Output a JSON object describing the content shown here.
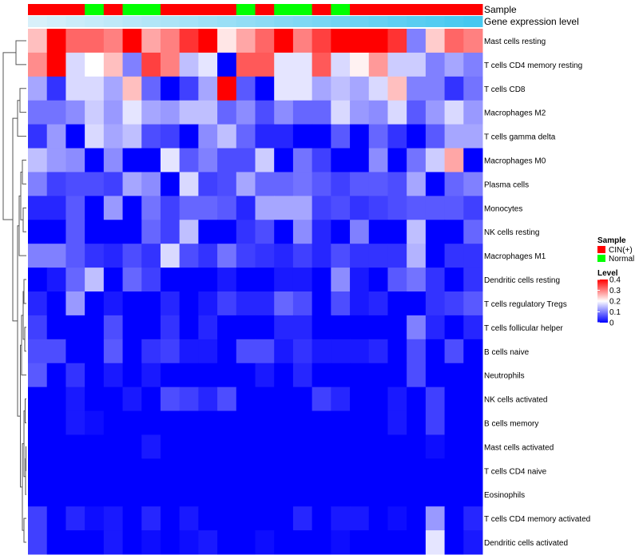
{
  "chart_data": {
    "type": "heatmap",
    "title": "",
    "annotation_labels": {
      "sample": "Sample",
      "gene_expression": "Gene expression level"
    },
    "rows": [
      "Mast cells resting",
      "T cells CD4 memory resting",
      "T cells CD8",
      "Macrophages M2",
      "T cells gamma delta",
      "Macrophages M0",
      "Plasma cells",
      "Monocytes",
      "NK cells resting",
      "Macrophages M1",
      "Dendritic cells resting",
      "T cells regulatory  Tregs",
      "T cells follicular helper",
      "B cells naive",
      "Neutrophils",
      "NK cells activated",
      "B cells memory",
      "Mast cells activated",
      "T cells CD4 naive",
      "Eosinophils",
      "T cells CD4 memory activated",
      "Dendritic cells activated"
    ],
    "sample_groups": [
      "CIN(+)",
      "CIN(+)",
      "CIN(+)",
      "Normal",
      "CIN(+)",
      "Normal",
      "Normal",
      "CIN(+)",
      "CIN(+)",
      "CIN(+)",
      "CIN(+)",
      "Normal",
      "CIN(+)",
      "Normal",
      "Normal",
      "CIN(+)",
      "Normal",
      "CIN(+)",
      "CIN(+)",
      "CIN(+)",
      "CIN(+)",
      "CIN(+)",
      "CIN(+)",
      "CIN(+)"
    ],
    "gene_expression_level": [
      0.0,
      0.04,
      0.09,
      0.13,
      0.17,
      0.22,
      0.26,
      0.3,
      0.35,
      0.39,
      0.43,
      0.48,
      0.52,
      0.57,
      0.61,
      0.65,
      0.7,
      0.74,
      0.78,
      0.83,
      0.87,
      0.91,
      0.96,
      1.0
    ],
    "values": [
      [
        0.25,
        0.4,
        0.32,
        0.32,
        0.3,
        0.4,
        0.27,
        0.3,
        0.36,
        0.4,
        0.22,
        0.27,
        0.32,
        0.4,
        0.3,
        0.35,
        0.4,
        0.4,
        0.4,
        0.36,
        0.1,
        0.24,
        0.32,
        0.3
      ],
      [
        0.29,
        0.4,
        0.17,
        0.2,
        0.25,
        0.1,
        0.35,
        0.3,
        0.15,
        0.18,
        0.0,
        0.33,
        0.33,
        0.18,
        0.18,
        0.33,
        0.17,
        0.21,
        0.28,
        0.16,
        0.16,
        0.1,
        0.13,
        0.1
      ],
      [
        0.13,
        0.04,
        0.17,
        0.17,
        0.13,
        0.25,
        0.08,
        0.0,
        0.05,
        0.13,
        0.4,
        0.07,
        0.0,
        0.18,
        0.18,
        0.13,
        0.15,
        0.13,
        0.17,
        0.25,
        0.1,
        0.1,
        0.04,
        0.09
      ],
      [
        0.09,
        0.09,
        0.11,
        0.16,
        0.12,
        0.18,
        0.13,
        0.12,
        0.15,
        0.15,
        0.08,
        0.11,
        0.06,
        0.11,
        0.08,
        0.08,
        0.17,
        0.12,
        0.11,
        0.17,
        0.07,
        0.12,
        0.17,
        0.12
      ],
      [
        0.04,
        0.12,
        0.0,
        0.17,
        0.13,
        0.15,
        0.06,
        0.05,
        0.0,
        0.11,
        0.15,
        0.08,
        0.03,
        0.03,
        0.0,
        0.0,
        0.07,
        0.0,
        0.08,
        0.04,
        0.0,
        0.07,
        0.13,
        0.13
      ],
      [
        0.15,
        0.12,
        0.11,
        0.0,
        0.11,
        0.0,
        0.0,
        0.18,
        0.07,
        0.1,
        0.06,
        0.06,
        0.16,
        0.0,
        0.09,
        0.05,
        0.0,
        0.0,
        0.11,
        0.0,
        0.09,
        0.16,
        0.27,
        0.0
      ],
      [
        0.1,
        0.05,
        0.06,
        0.06,
        0.05,
        0.13,
        0.11,
        0.0,
        0.17,
        0.05,
        0.06,
        0.13,
        0.08,
        0.08,
        0.09,
        0.07,
        0.05,
        0.07,
        0.07,
        0.06,
        0.13,
        0.0,
        0.08,
        0.1
      ],
      [
        0.03,
        0.03,
        0.07,
        0.0,
        0.12,
        0.0,
        0.09,
        0.05,
        0.08,
        0.08,
        0.07,
        0.03,
        0.13,
        0.13,
        0.13,
        0.05,
        0.06,
        0.04,
        0.05,
        0.06,
        0.07,
        0.07,
        0.07,
        0.05
      ],
      [
        0.0,
        0.0,
        0.07,
        0.0,
        0.0,
        0.0,
        0.08,
        0.05,
        0.15,
        0.0,
        0.0,
        0.04,
        0.06,
        0.0,
        0.11,
        0.03,
        0.0,
        0.1,
        0.0,
        0.0,
        0.15,
        0.0,
        0.0,
        0.08
      ],
      [
        0.1,
        0.1,
        0.07,
        0.04,
        0.03,
        0.06,
        0.04,
        0.17,
        0.06,
        0.04,
        0.09,
        0.05,
        0.04,
        0.03,
        0.05,
        0.03,
        0.06,
        0.04,
        0.04,
        0.04,
        0.14,
        0.0,
        0.04,
        0.04
      ],
      [
        0.0,
        0.02,
        0.08,
        0.15,
        0.0,
        0.08,
        0.05,
        0.0,
        0.0,
        0.0,
        0.02,
        0.0,
        0.0,
        0.02,
        0.02,
        0.0,
        0.11,
        0.02,
        0.0,
        0.07,
        0.09,
        0.04,
        0.0,
        0.04
      ],
      [
        0.03,
        0.0,
        0.12,
        0.0,
        0.02,
        0.0,
        0.0,
        0.03,
        0.0,
        0.02,
        0.05,
        0.03,
        0.03,
        0.08,
        0.06,
        0.0,
        0.06,
        0.02,
        0.03,
        0.0,
        0.0,
        0.04,
        0.05,
        0.07
      ],
      [
        0.05,
        0.0,
        0.0,
        0.0,
        0.06,
        0.0,
        0.0,
        0.04,
        0.0,
        0.03,
        0.0,
        0.0,
        0.0,
        0.03,
        0.03,
        0.0,
        0.0,
        0.0,
        0.0,
        0.0,
        0.1,
        0.03,
        0.0,
        0.03
      ],
      [
        0.06,
        0.06,
        0.0,
        0.0,
        0.07,
        0.0,
        0.04,
        0.05,
        0.02,
        0.02,
        0.0,
        0.06,
        0.06,
        0.02,
        0.04,
        0.02,
        0.02,
        0.02,
        0.03,
        0.0,
        0.06,
        0.0,
        0.06,
        0.0
      ],
      [
        0.07,
        0.0,
        0.04,
        0.0,
        0.02,
        0.0,
        0.02,
        0.0,
        0.0,
        0.0,
        0.0,
        0.0,
        0.02,
        0.0,
        0.03,
        0.0,
        0.0,
        0.0,
        0.0,
        0.0,
        0.06,
        0.0,
        0.0,
        0.0
      ],
      [
        0.0,
        0.0,
        0.02,
        0.0,
        0.0,
        0.02,
        0.0,
        0.06,
        0.05,
        0.03,
        0.06,
        0.0,
        0.0,
        0.0,
        0.0,
        0.05,
        0.03,
        0.0,
        0.0,
        0.02,
        0.0,
        0.05,
        0.0,
        0.0
      ],
      [
        0.0,
        0.0,
        0.02,
        0.01,
        0.0,
        0.0,
        0.0,
        0.0,
        0.0,
        0.0,
        0.0,
        0.0,
        0.0,
        0.0,
        0.0,
        0.0,
        0.0,
        0.0,
        0.0,
        0.02,
        0.0,
        0.05,
        0.0,
        0.0
      ],
      [
        0.0,
        0.0,
        0.0,
        0.0,
        0.0,
        0.0,
        0.02,
        0.0,
        0.0,
        0.0,
        0.0,
        0.0,
        0.0,
        0.0,
        0.0,
        0.0,
        0.0,
        0.0,
        0.0,
        0.0,
        0.0,
        0.01,
        0.0,
        0.0
      ],
      [
        0.0,
        0.0,
        0.0,
        0.0,
        0.0,
        0.0,
        0.0,
        0.0,
        0.0,
        0.0,
        0.0,
        0.0,
        0.0,
        0.0,
        0.0,
        0.0,
        0.0,
        0.0,
        0.0,
        0.0,
        0.0,
        0.0,
        0.0,
        0.0
      ],
      [
        0.0,
        0.0,
        0.0,
        0.0,
        0.0,
        0.0,
        0.0,
        0.0,
        0.0,
        0.0,
        0.0,
        0.0,
        0.0,
        0.0,
        0.0,
        0.0,
        0.0,
        0.0,
        0.0,
        0.0,
        0.0,
        0.0,
        0.0,
        0.0
      ],
      [
        0.05,
        0.0,
        0.03,
        0.01,
        0.02,
        0.0,
        0.03,
        0.0,
        0.02,
        0.0,
        0.0,
        0.0,
        0.0,
        0.0,
        0.03,
        0.0,
        0.02,
        0.02,
        0.0,
        0.01,
        0.0,
        0.12,
        0.0,
        0.03
      ],
      [
        0.05,
        0.0,
        0.0,
        0.0,
        0.02,
        0.0,
        0.01,
        0.0,
        0.01,
        0.02,
        0.0,
        0.0,
        0.01,
        0.0,
        0.0,
        0.0,
        0.01,
        0.0,
        0.0,
        0.0,
        0.0,
        0.18,
        0.0,
        0.02
      ]
    ],
    "color_scale": {
      "min": 0,
      "mid": 0.2,
      "max": 0.4,
      "low_color": "#0000FF",
      "mid_color": "#FFFFFF",
      "high_color": "#FF0000"
    },
    "legend": {
      "position": "right",
      "sample_title": "Sample",
      "sample_entries": [
        {
          "label": "CIN(+)",
          "color": "#FF0000"
        },
        {
          "label": "Normal",
          "color": "#00FF00"
        }
      ],
      "level_title": "Level",
      "level_ticks": [
        "0.4",
        "0.3",
        "0.2",
        "0.1",
        "0"
      ],
      "level_tick_values": [
        0.4,
        0.3,
        0.2,
        0.1,
        0
      ]
    },
    "gene_expression_colors": {
      "start": "#D8F0FA",
      "end": "#46C8F0"
    },
    "row_dendrogram": true
  }
}
